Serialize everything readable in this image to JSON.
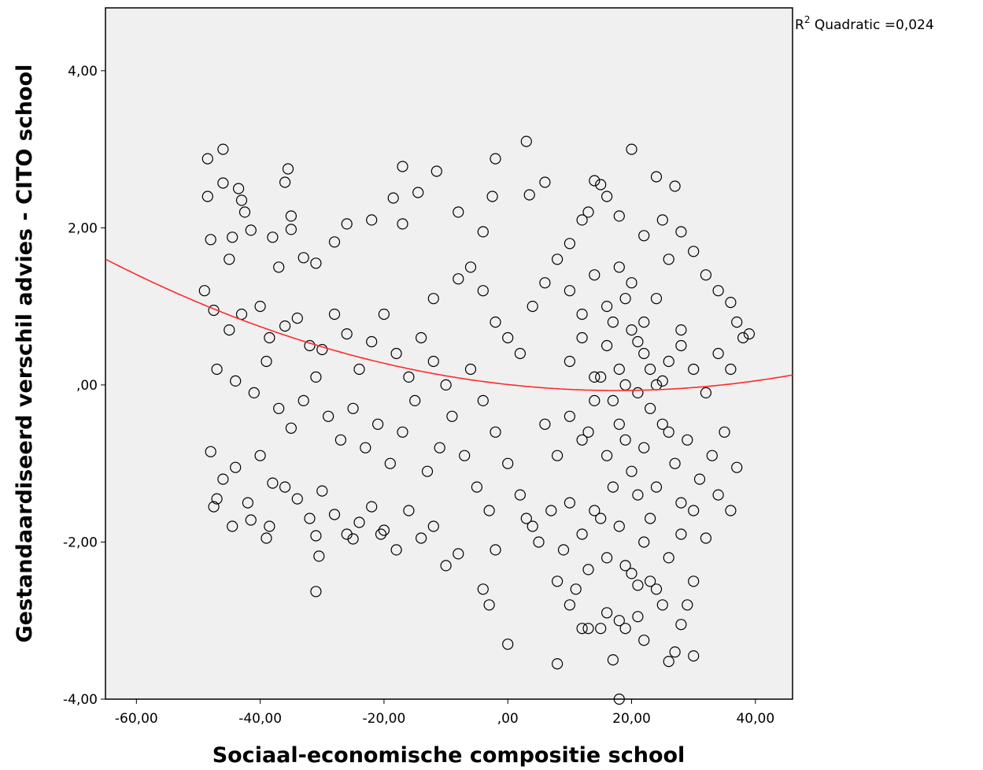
{
  "chart_data": {
    "type": "scatter",
    "xlabel": "Sociaal-economische compositie school",
    "ylabel": "Gestandaardiseerd verschil advies - CITO school",
    "xlim": [
      -65,
      46
    ],
    "ylim": [
      -4,
      4.8
    ],
    "x_ticks": [
      -60,
      -40,
      -20,
      0,
      20,
      40
    ],
    "x_tick_labels": [
      "-60,00",
      "-40,00",
      "-20,00",
      ",00",
      "20,00",
      "40,00"
    ],
    "y_ticks": [
      -4,
      -2,
      0,
      2,
      4
    ],
    "y_tick_labels": [
      "-4,00",
      "-2,00",
      ",00",
      "2,00",
      "4,00"
    ],
    "grid": false,
    "background_color": "#f0f0f0",
    "fit_line": {
      "model": "quadratic",
      "r2_label_prefix": "R",
      "r2_label_sup": "2",
      "r2_label_text": " Quadratic =0,024",
      "coefficients": {
        "a": 0.000245,
        "b": -0.00863,
        "c": 0.005
      },
      "color": "#ff2a2a"
    },
    "points": [
      [
        -48.5,
        2.88
      ],
      [
        -46,
        3.0
      ],
      [
        -35.5,
        2.75
      ],
      [
        -46,
        2.57
      ],
      [
        -36,
        2.58
      ],
      [
        -43.5,
        2.5
      ],
      [
        -48.5,
        2.4
      ],
      [
        -42.5,
        2.2
      ],
      [
        -43,
        2.35
      ],
      [
        -35,
        2.15
      ],
      [
        -41.5,
        1.97
      ],
      [
        -48,
        1.85
      ],
      [
        -44.5,
        1.88
      ],
      [
        -38,
        1.88
      ],
      [
        -35,
        1.98
      ],
      [
        -45,
        1.6
      ],
      [
        -33,
        1.62
      ],
      [
        -37,
        1.5
      ],
      [
        -31,
        1.55
      ],
      [
        -28,
        1.82
      ],
      [
        -49,
        1.2
      ],
      [
        -47.5,
        0.95
      ],
      [
        -45,
        0.7
      ],
      [
        -43,
        0.9
      ],
      [
        -40,
        1.0
      ],
      [
        -38.5,
        0.6
      ],
      [
        -36,
        0.75
      ],
      [
        -34,
        0.85
      ],
      [
        -32,
        0.5
      ],
      [
        -30,
        0.45
      ],
      [
        -28,
        0.9
      ],
      [
        -26,
        0.65
      ],
      [
        -24,
        0.2
      ],
      [
        -22,
        0.55
      ],
      [
        -20,
        0.9
      ],
      [
        -18,
        0.4
      ],
      [
        -16,
        0.1
      ],
      [
        -14,
        0.6
      ],
      [
        -12,
        0.3
      ],
      [
        -10,
        0.0
      ],
      [
        -47,
        0.2
      ],
      [
        -44,
        0.05
      ],
      [
        -41,
        -0.1
      ],
      [
        -39,
        0.3
      ],
      [
        -37,
        -0.3
      ],
      [
        -35,
        -0.55
      ],
      [
        -33,
        -0.2
      ],
      [
        -31,
        0.1
      ],
      [
        -29,
        -0.4
      ],
      [
        -27,
        -0.7
      ],
      [
        -25,
        -0.3
      ],
      [
        -23,
        -0.8
      ],
      [
        -21,
        -0.5
      ],
      [
        -19,
        -1.0
      ],
      [
        -17,
        -0.6
      ],
      [
        -15,
        -0.2
      ],
      [
        -13,
        -1.1
      ],
      [
        -11,
        -0.8
      ],
      [
        -9,
        -0.4
      ],
      [
        -7,
        -0.9
      ],
      [
        -48,
        -0.85
      ],
      [
        -46,
        -1.2
      ],
      [
        -44,
        -1.05
      ],
      [
        -42,
        -1.5
      ],
      [
        -40,
        -0.9
      ],
      [
        -38,
        -1.25
      ],
      [
        -36,
        -1.3
      ],
      [
        -34,
        -1.45
      ],
      [
        -32,
        -1.7
      ],
      [
        -30,
        -1.35
      ],
      [
        -28,
        -1.65
      ],
      [
        -26,
        -1.9
      ],
      [
        -24,
        -1.75
      ],
      [
        -22,
        -1.55
      ],
      [
        -20,
        -1.85
      ],
      [
        -18,
        -2.1
      ],
      [
        -16,
        -1.6
      ],
      [
        -14,
        -1.95
      ],
      [
        -12,
        -1.8
      ],
      [
        -10,
        -2.3
      ],
      [
        -44.5,
        -1.8
      ],
      [
        -41.5,
        -1.72
      ],
      [
        -39,
        -1.95
      ],
      [
        -31,
        -1.92
      ],
      [
        -30.5,
        -2.18
      ],
      [
        -31,
        -2.63
      ],
      [
        -25,
        -1.96
      ],
      [
        -8,
        -2.15
      ],
      [
        -4,
        -2.6
      ],
      [
        -3,
        -2.8
      ],
      [
        -47,
        -1.45
      ],
      [
        -47.5,
        -1.55
      ],
      [
        -38.5,
        -1.8
      ],
      [
        -20.5,
        -1.9
      ],
      [
        -2,
        -2.1
      ],
      [
        0,
        -3.3
      ],
      [
        -14.5,
        2.45
      ],
      [
        -17,
        2.78
      ],
      [
        -11.5,
        2.72
      ],
      [
        -2,
        2.88
      ],
      [
        3,
        3.1
      ],
      [
        -18.5,
        2.38
      ],
      [
        -2.5,
        2.4
      ],
      [
        3.5,
        2.42
      ],
      [
        6,
        2.58
      ],
      [
        -8,
        2.2
      ],
      [
        -26,
        2.05
      ],
      [
        -22,
        2.1
      ],
      [
        -17,
        2.05
      ],
      [
        -4,
        1.95
      ],
      [
        -6,
        1.5
      ],
      [
        -4,
        1.2
      ],
      [
        -2,
        0.8
      ],
      [
        0,
        0.6
      ],
      [
        2,
        0.4
      ],
      [
        4,
        1.0
      ],
      [
        6,
        1.3
      ],
      [
        8,
        1.6
      ],
      [
        -8,
        1.35
      ],
      [
        -12,
        1.1
      ],
      [
        -6,
        0.2
      ],
      [
        -4,
        -0.2
      ],
      [
        -2,
        -0.6
      ],
      [
        0,
        -1.0
      ],
      [
        2,
        -1.4
      ],
      [
        4,
        -1.8
      ],
      [
        6,
        -0.5
      ],
      [
        8,
        -0.9
      ],
      [
        -5,
        -1.3
      ],
      [
        -3,
        -1.6
      ],
      [
        10,
        1.8
      ],
      [
        12,
        2.1
      ],
      [
        14,
        2.6
      ],
      [
        16,
        2.4
      ],
      [
        20,
        3.0
      ],
      [
        24,
        2.65
      ],
      [
        27,
        2.53
      ],
      [
        15,
        2.55
      ],
      [
        13,
        2.2
      ],
      [
        18,
        2.15
      ],
      [
        22,
        1.9
      ],
      [
        25,
        2.1
      ],
      [
        28,
        1.95
      ],
      [
        30,
        1.7
      ],
      [
        32,
        1.4
      ],
      [
        34,
        1.2
      ],
      [
        36,
        1.05
      ],
      [
        37,
        0.8
      ],
      [
        38,
        0.6
      ],
      [
        39,
        0.65
      ],
      [
        10,
        1.2
      ],
      [
        12,
        0.9
      ],
      [
        14,
        1.4
      ],
      [
        16,
        1.0
      ],
      [
        18,
        1.5
      ],
      [
        20,
        1.3
      ],
      [
        22,
        0.8
      ],
      [
        24,
        1.1
      ],
      [
        26,
        1.6
      ],
      [
        28,
        0.7
      ],
      [
        10,
        0.3
      ],
      [
        12,
        0.6
      ],
      [
        14,
        0.1
      ],
      [
        16,
        0.5
      ],
      [
        18,
        0.2
      ],
      [
        20,
        0.7
      ],
      [
        22,
        0.4
      ],
      [
        24,
        0.0
      ],
      [
        26,
        0.3
      ],
      [
        28,
        0.5
      ],
      [
        30,
        0.2
      ],
      [
        32,
        -0.1
      ],
      [
        34,
        0.4
      ],
      [
        36,
        0.2
      ],
      [
        35,
        -0.6
      ],
      [
        33,
        -0.9
      ],
      [
        31,
        -1.2
      ],
      [
        29,
        -0.7
      ],
      [
        27,
        -1.0
      ],
      [
        25,
        -0.5
      ],
      [
        10,
        -0.4
      ],
      [
        12,
        -0.7
      ],
      [
        14,
        -0.2
      ],
      [
        16,
        -0.9
      ],
      [
        18,
        -0.5
      ],
      [
        20,
        -1.1
      ],
      [
        22,
        -0.8
      ],
      [
        24,
        -1.3
      ],
      [
        26,
        -0.6
      ],
      [
        28,
        -1.5
      ],
      [
        10,
        -1.5
      ],
      [
        12,
        -1.9
      ],
      [
        14,
        -1.6
      ],
      [
        16,
        -2.2
      ],
      [
        18,
        -1.8
      ],
      [
        20,
        -2.4
      ],
      [
        22,
        -2.0
      ],
      [
        24,
        -2.6
      ],
      [
        26,
        -2.2
      ],
      [
        28,
        -1.9
      ],
      [
        30,
        -1.6
      ],
      [
        32,
        -1.95
      ],
      [
        34,
        -1.4
      ],
      [
        36,
        -1.6
      ],
      [
        37,
        -1.05
      ],
      [
        30,
        -2.5
      ],
      [
        29,
        -2.8
      ],
      [
        28,
        -3.05
      ],
      [
        30,
        -3.45
      ],
      [
        27,
        -3.4
      ],
      [
        8,
        -2.5
      ],
      [
        10,
        -2.8
      ],
      [
        12,
        -3.1
      ],
      [
        13,
        -3.1
      ],
      [
        15,
        -3.1
      ],
      [
        16,
        -2.9
      ],
      [
        18,
        -3.0
      ],
      [
        19,
        -3.1
      ],
      [
        21,
        -2.95
      ],
      [
        17,
        -3.5
      ],
      [
        22,
        -3.25
      ],
      [
        26,
        -3.52
      ],
      [
        8,
        -3.55
      ],
      [
        18,
        -4.0
      ],
      [
        3,
        -1.7
      ],
      [
        5,
        -2.0
      ],
      [
        7,
        -1.6
      ],
      [
        9,
        -2.1
      ],
      [
        11,
        -2.6
      ],
      [
        13,
        -2.35
      ],
      [
        15,
        0.1
      ],
      [
        17,
        -0.2
      ],
      [
        19,
        0.0
      ],
      [
        21,
        -0.1
      ],
      [
        23,
        0.2
      ],
      [
        25,
        0.05
      ],
      [
        19,
        1.1
      ],
      [
        21,
        0.55
      ],
      [
        23,
        -0.3
      ],
      [
        17,
        0.8
      ],
      [
        19,
        -0.7
      ],
      [
        21,
        -1.4
      ],
      [
        23,
        -1.7
      ],
      [
        19,
        -2.3
      ],
      [
        21,
        -2.55
      ],
      [
        23,
        -2.5
      ],
      [
        25,
        -2.8
      ],
      [
        17,
        -1.3
      ],
      [
        15,
        -1.7
      ],
      [
        13,
        -0.6
      ]
    ]
  }
}
